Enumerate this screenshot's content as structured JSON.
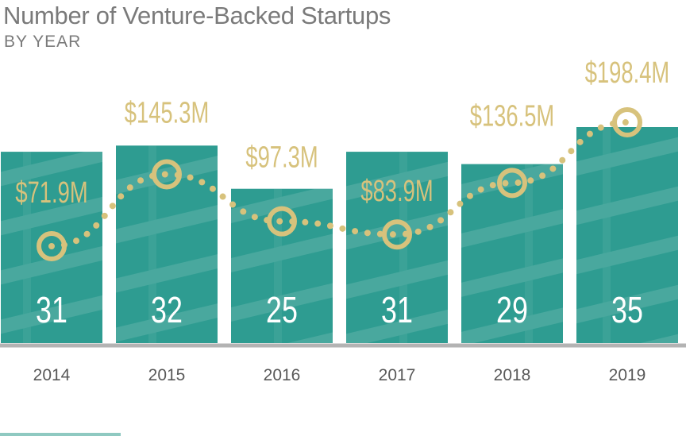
{
  "header": {
    "title": "Number of Venture-Backed Startups",
    "subtitle": "BY YEAR"
  },
  "colors": {
    "bar": "#2e9c91",
    "bar_texture": "#8fc9c1",
    "gold": "#d7c27c",
    "axis": "#b3b3b3",
    "tick_text": "#595959",
    "title_text": "#7a7a7a"
  },
  "chart_data": {
    "type": "bar",
    "title": "Number of Venture-Backed Startups",
    "subtitle": "BY YEAR",
    "categories": [
      "2014",
      "2015",
      "2016",
      "2017",
      "2018",
      "2019"
    ],
    "series": [
      {
        "values": [
          31,
          32,
          25,
          31,
          29,
          35
        ]
      },
      {
        "type": "line",
        "values": [
          71.9,
          145.3,
          97.3,
          83.9,
          136.5,
          198.4
        ]
      }
    ],
    "count_labels": [
      "31",
      "32",
      "25",
      "31",
      "29",
      "35"
    ],
    "amount_labels": [
      "$71.9M",
      "$145.3M",
      "$97.3M",
      "$83.9M",
      "$136.5M",
      "$198.4M"
    ],
    "grid": false,
    "legend": "none"
  }
}
